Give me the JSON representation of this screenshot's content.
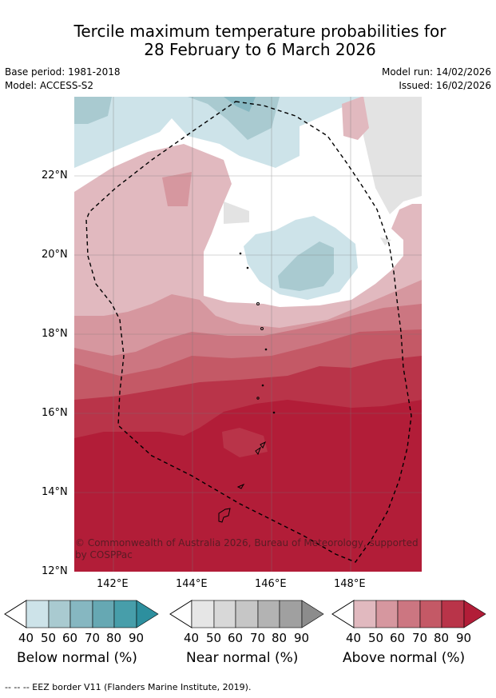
{
  "title_line1": "Tercile maximum temperature probabilities for",
  "title_line2": "28 February to 6 March 2026",
  "base_period": "Base period: 1981-2018",
  "model": "Model: ACCESS-S2",
  "model_run": "Model run: 14/02/2026",
  "issued": "Issued: 16/02/2026",
  "latitudes": [
    "22°N",
    "20°N",
    "18°N",
    "16°N",
    "14°N",
    "12°N"
  ],
  "longitudes": [
    "142°E",
    "144°E",
    "146°E",
    "148°E"
  ],
  "copyright": "© Commonwealth of Australia 2026, Bureau of Meteorology, supported by COSPPac",
  "eez_note": "--  --  -- EEZ border V11 (Flanders Marine Institute, 2019).",
  "colorbars": [
    {
      "label": "Below normal (%)",
      "ticks": [
        "40",
        "50",
        "60",
        "70",
        "80",
        "90"
      ],
      "colors": [
        "#cde3e9",
        "#a9cad0",
        "#86b7c1",
        "#66a8b3",
        "#479eaa",
        "#2d8f9e"
      ]
    },
    {
      "label": "Near normal (%)",
      "ticks": [
        "40",
        "50",
        "60",
        "70",
        "80",
        "90"
      ],
      "colors": [
        "#e6e6e6",
        "#d8d8d8",
        "#c6c6c6",
        "#b3b3b3",
        "#a0a0a0",
        "#8c8c8c"
      ]
    },
    {
      "label": "Above normal (%)",
      "ticks": [
        "40",
        "50",
        "60",
        "70",
        "80",
        "90"
      ],
      "colors": [
        "#e1b9bf",
        "#d6979f",
        "#cc7681",
        "#c45966",
        "#b93449",
        "#b21d38"
      ]
    }
  ]
}
